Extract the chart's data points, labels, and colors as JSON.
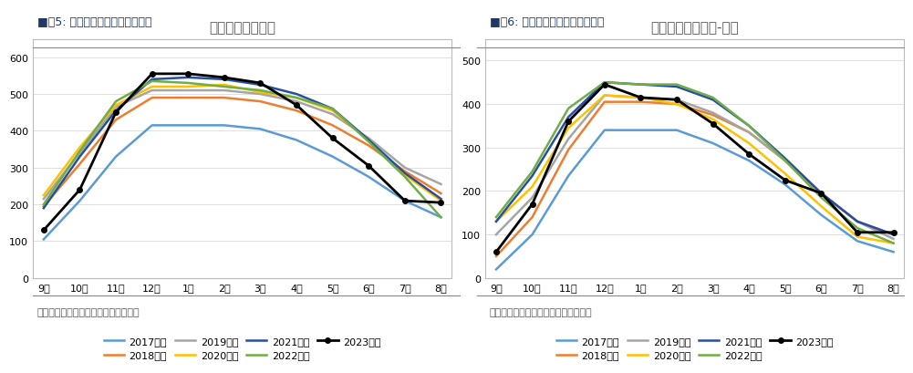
{
  "chart1": {
    "title": "全国棉花商业库存",
    "header": "■图5: 全国棉花商业库存（万吨）",
    "footer": "数据来源：银河期货、中国棉花信息网",
    "ylim": [
      0,
      650
    ],
    "yticks": [
      0,
      100,
      200,
      300,
      400,
      500,
      600
    ],
    "months": [
      "9月",
      "10月",
      "11月",
      "12月",
      "1月",
      "2月",
      "3月",
      "4月",
      "5月",
      "6月",
      "7月",
      "8月"
    ],
    "series": {
      "2017年度": [
        105,
        210,
        330,
        415,
        415,
        415,
        405,
        375,
        330,
        275,
        210,
        165
      ],
      "2018年度": [
        195,
        310,
        430,
        490,
        490,
        490,
        480,
        455,
        415,
        360,
        290,
        230
      ],
      "2019年度": [
        215,
        340,
        465,
        510,
        510,
        510,
        500,
        480,
        445,
        380,
        300,
        255
      ],
      "2020年度": [
        225,
        355,
        470,
        520,
        520,
        525,
        505,
        490,
        455,
        375,
        280,
        210
      ],
      "2021年度": [
        190,
        330,
        455,
        540,
        545,
        540,
        525,
        500,
        460,
        375,
        285,
        215
      ],
      "2022年度": [
        200,
        345,
        480,
        535,
        530,
        520,
        510,
        490,
        460,
        370,
        275,
        165
      ],
      "2023年度": [
        130,
        240,
        450,
        555,
        555,
        545,
        530,
        470,
        380,
        305,
        210,
        205
      ]
    },
    "colors": {
      "2017年度": "#5B9BD5",
      "2018年度": "#ED7D31",
      "2019年度": "#A5A5A5",
      "2020年度": "#FFC000",
      "2021年度": "#264FA0",
      "2022年度": "#70AD47",
      "2023年度": "#000000"
    },
    "markers": {
      "2017年度": null,
      "2018年度": null,
      "2019年度": null,
      "2020年度": null,
      "2021年度": null,
      "2022年度": null,
      "2023年度": "o"
    }
  },
  "chart2": {
    "title": "全国棉花商业库存-新疆",
    "header": "■图6: 新疆地区商业库存（万吨）",
    "footer": "数据来源：银河期货、中国棉花信息网",
    "ylim": [
      0,
      550
    ],
    "yticks": [
      0,
      100,
      200,
      300,
      400,
      500
    ],
    "months": [
      "9月",
      "10月",
      "11月",
      "12月",
      "1月",
      "2月",
      "3月",
      "4月",
      "5月",
      "6月",
      "7月",
      "8月"
    ],
    "series": {
      "2017年度": [
        20,
        100,
        235,
        340,
        340,
        340,
        310,
        270,
        215,
        145,
        85,
        60
      ],
      "2018年度": [
        50,
        140,
        295,
        405,
        405,
        400,
        375,
        335,
        270,
        195,
        130,
        100
      ],
      "2019年度": [
        100,
        185,
        320,
        420,
        415,
        410,
        380,
        335,
        270,
        195,
        130,
        90
      ],
      "2020年度": [
        130,
        210,
        345,
        420,
        415,
        400,
        365,
        310,
        240,
        165,
        95,
        80
      ],
      "2021年度": [
        130,
        235,
        370,
        450,
        445,
        440,
        410,
        350,
        275,
        195,
        130,
        100
      ],
      "2022年度": [
        140,
        245,
        390,
        450,
        445,
        445,
        415,
        350,
        270,
        185,
        115,
        80
      ],
      "2023年度": [
        60,
        170,
        360,
        445,
        415,
        410,
        355,
        285,
        225,
        195,
        105,
        105
      ]
    },
    "colors": {
      "2017年度": "#5B9BD5",
      "2018年度": "#ED7D31",
      "2019年度": "#A5A5A5",
      "2020年度": "#FFC000",
      "2021年度": "#264FA0",
      "2022年度": "#70AD47",
      "2023年度": "#000000"
    },
    "markers": {
      "2017年度": null,
      "2018年度": null,
      "2019年度": null,
      "2020年度": null,
      "2021年度": null,
      "2022年度": null,
      "2023年度": "o"
    }
  },
  "bg_color": "#FFFFFF",
  "plot_bg_color": "#FFFFFF",
  "border_color": "#CCCCCC",
  "title_fontsize": 11,
  "tick_fontsize": 8,
  "legend_fontsize": 8,
  "header_fontsize": 9,
  "footer_fontsize": 8
}
